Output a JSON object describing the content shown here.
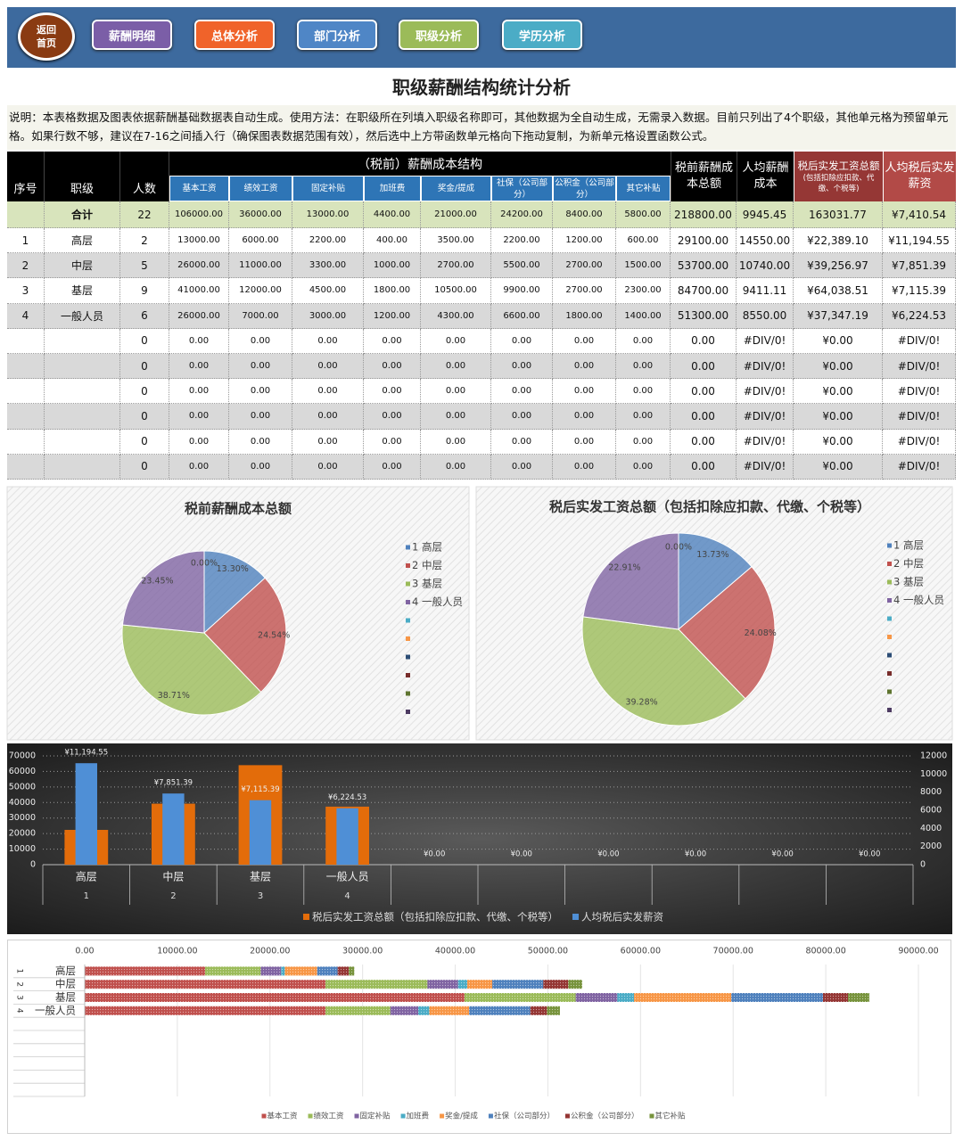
{
  "nav": {
    "home": [
      "返回",
      "首页"
    ],
    "buttons": [
      "薪酬明细",
      "总体分析",
      "部门分析",
      "职级分析",
      "学历分析"
    ]
  },
  "title": "职级薪酬结构统计分析",
  "note": "说明：本表格数据及图表依据薪酬基础数据表自动生成。使用方法：在职级所在列填入职级名称即可，其他数据为全自动生成，无需录入数据。目前只列出了4个职级，其他单元格为预留单元格。如果行数不够，建议在7-16之间插入行（确保图表数据范围有效），然后选中上方带函数单元格向下拖动复制，为新单元格设置函数公式。",
  "table": {
    "group": "（税前）薪酬成本结构",
    "columns": [
      "序号",
      "职级",
      "人数",
      "基本工资",
      "绩效工资",
      "固定补贴",
      "加班费",
      "奖金/提成",
      "社保（公司部分）",
      "公积金（公司部分）",
      "其它补贴",
      "税前薪酬成本总额",
      "人均薪酬成本",
      "税后实发工资总额",
      "人均税后实发薪资"
    ],
    "column_note": "(包括扣除应扣款、代缴、个税等)",
    "rows": [
      [
        null,
        "合计",
        "22",
        "106000.00",
        "36000.00",
        "13000.00",
        "4400.00",
        "21000.00",
        "24200.00",
        "8400.00",
        "5800.00",
        "218800.00",
        "9945.45",
        "163031.77",
        "¥7,410.54"
      ],
      [
        "1",
        "高层",
        "2",
        "13000.00",
        "6000.00",
        "2200.00",
        "400.00",
        "3500.00",
        "2200.00",
        "1200.00",
        "600.00",
        "29100.00",
        "14550.00",
        "¥22,389.10",
        "¥11,194.55"
      ],
      [
        "2",
        "中层",
        "5",
        "26000.00",
        "11000.00",
        "3300.00",
        "1000.00",
        "2700.00",
        "5500.00",
        "2700.00",
        "1500.00",
        "53700.00",
        "10740.00",
        "¥39,256.97",
        "¥7,851.39"
      ],
      [
        "3",
        "基层",
        "9",
        "41000.00",
        "12000.00",
        "4500.00",
        "1800.00",
        "10500.00",
        "9900.00",
        "2700.00",
        "2300.00",
        "84700.00",
        "9411.11",
        "¥64,038.51",
        "¥7,115.39"
      ],
      [
        "4",
        "一般人员",
        "6",
        "26000.00",
        "7000.00",
        "3000.00",
        "1200.00",
        "4300.00",
        "6600.00",
        "1800.00",
        "1400.00",
        "51300.00",
        "8550.00",
        "¥37,347.19",
        "¥6,224.53"
      ],
      [
        null,
        null,
        "0",
        "0.00",
        "0.00",
        "0.00",
        "0.00",
        "0.00",
        "0.00",
        "0.00",
        "0.00",
        "0.00",
        "#DIV/0!",
        "¥0.00",
        "#DIV/0!"
      ],
      [
        null,
        null,
        "0",
        "0.00",
        "0.00",
        "0.00",
        "0.00",
        "0.00",
        "0.00",
        "0.00",
        "0.00",
        "0.00",
        "#DIV/0!",
        "¥0.00",
        "#DIV/0!"
      ],
      [
        null,
        null,
        "0",
        "0.00",
        "0.00",
        "0.00",
        "0.00",
        "0.00",
        "0.00",
        "0.00",
        "0.00",
        "0.00",
        "#DIV/0!",
        "¥0.00",
        "#DIV/0!"
      ],
      [
        null,
        null,
        "0",
        "0.00",
        "0.00",
        "0.00",
        "0.00",
        "0.00",
        "0.00",
        "0.00",
        "0.00",
        "0.00",
        "#DIV/0!",
        "¥0.00",
        "#DIV/0!"
      ],
      [
        null,
        null,
        "0",
        "0.00",
        "0.00",
        "0.00",
        "0.00",
        "0.00",
        "0.00",
        "0.00",
        "0.00",
        "0.00",
        "#DIV/0!",
        "¥0.00",
        "#DIV/0!"
      ],
      [
        null,
        null,
        "0",
        "0.00",
        "0.00",
        "0.00",
        "0.00",
        "0.00",
        "0.00",
        "0.00",
        "0.00",
        "0.00",
        "#DIV/0!",
        "¥0.00",
        "#DIV/0!"
      ]
    ]
  },
  "chart_data": [
    {
      "type": "pie",
      "title": "税前薪酬成本总额",
      "categories": [
        "1 高层",
        "2 中层",
        "3 基层",
        "4 一般人员",
        null,
        null,
        null,
        null,
        null,
        null
      ],
      "values": [
        13.3,
        24.54,
        38.71,
        23.45,
        0,
        0,
        0,
        0,
        0,
        0
      ],
      "value_labels": [
        "13.30%",
        "24.54%",
        "38.71%",
        "23.45%",
        "0.00%",
        null,
        null,
        null,
        null,
        null
      ],
      "colors": [
        "#4f81bd",
        "#c0504d",
        "#9bbb59",
        "#8064a2",
        "#4bacc6",
        "#f79646",
        "#2c4d75",
        "#772c2a",
        "#5f7530",
        "#4d3b62"
      ]
    },
    {
      "type": "pie",
      "title": "税后实发工资总额（包括扣除应扣款、代缴、个税等）",
      "categories": [
        "1 高层",
        "2 中层",
        "3 基层",
        "4 一般人员",
        null,
        null,
        null,
        null,
        null,
        null
      ],
      "values": [
        13.73,
        24.08,
        39.28,
        22.91,
        0,
        0,
        0,
        0,
        0,
        0
      ],
      "value_labels": [
        "13.73%",
        "24.08%",
        "39.28%",
        "22.91%",
        "0.00%",
        null,
        null,
        null,
        null,
        null
      ],
      "colors": [
        "#4f81bd",
        "#c0504d",
        "#9bbb59",
        "#8064a2",
        "#4bacc6",
        "#f79646",
        "#2c4d75",
        "#772c2a",
        "#5f7530",
        "#4d3b62"
      ]
    },
    {
      "type": "bar",
      "categories": [
        "高层",
        "中层",
        "基层",
        "一般人员",
        null,
        null,
        null,
        null,
        null,
        null
      ],
      "category_numbers": [
        "1",
        "2",
        "3",
        "4",
        null,
        null,
        null,
        null,
        null,
        null
      ],
      "series": [
        {
          "name": "税后实发工资总额（包括扣除应扣款、代缴、个税等）",
          "color": "#e36c0a",
          "values": [
            22389.1,
            39256.97,
            64038.51,
            37347.19,
            0,
            0,
            0,
            0,
            0,
            0
          ]
        },
        {
          "name": "人均税后实发薪资",
          "color": "#4f8fd6",
          "axis": "y2",
          "values": [
            11194.55,
            7851.39,
            7115.39,
            6224.53,
            0,
            0,
            0,
            0,
            0,
            0
          ],
          "value_labels": [
            "¥11,194.55",
            "¥7,851.39",
            "¥7,115.39",
            "¥6,224.53",
            "¥0.00",
            "¥0.00",
            "¥0.00",
            "¥0.00",
            "¥0.00",
            "¥0.00"
          ]
        }
      ],
      "ylim": [
        0,
        70000
      ],
      "yticks": [
        0,
        10000,
        20000,
        30000,
        40000,
        50000,
        60000,
        70000
      ],
      "y2lim": [
        0,
        12000
      ],
      "y2ticks": [
        0,
        2000,
        4000,
        6000,
        8000,
        10000,
        12000
      ],
      "grid": true
    },
    {
      "type": "bar",
      "orientation": "horizontal",
      "stacked": true,
      "categories": [
        "高层",
        "中层",
        "基层",
        "一般人员",
        null,
        null,
        null,
        null,
        null,
        null
      ],
      "category_numbers": [
        "1",
        "2",
        "3",
        "4",
        null,
        null,
        null,
        null,
        null,
        null
      ],
      "series": [
        {
          "name": "基本工资",
          "color": "#c0504d",
          "values": [
            13000,
            26000,
            41000,
            26000,
            0,
            0,
            0,
            0,
            0,
            0
          ]
        },
        {
          "name": "绩效工资",
          "color": "#9bbb59",
          "values": [
            6000,
            11000,
            12000,
            7000,
            0,
            0,
            0,
            0,
            0,
            0
          ]
        },
        {
          "name": "固定补贴",
          "color": "#8064a2",
          "values": [
            2200,
            3300,
            4500,
            3000,
            0,
            0,
            0,
            0,
            0,
            0
          ]
        },
        {
          "name": "加班费",
          "color": "#4bacc6",
          "values": [
            400,
            1000,
            1800,
            1200,
            0,
            0,
            0,
            0,
            0,
            0
          ]
        },
        {
          "name": "奖金/提成",
          "color": "#f79646",
          "values": [
            3500,
            2700,
            10500,
            4300,
            0,
            0,
            0,
            0,
            0,
            0
          ]
        },
        {
          "name": "社保（公司部分）",
          "color": "#4f81bd",
          "values": [
            2200,
            5500,
            9900,
            6600,
            0,
            0,
            0,
            0,
            0,
            0
          ]
        },
        {
          "name": "公积金（公司部分）",
          "color": "#943634",
          "values": [
            1200,
            2700,
            2700,
            1800,
            0,
            0,
            0,
            0,
            0,
            0
          ]
        },
        {
          "name": "其它补贴",
          "color": "#77933c",
          "values": [
            600,
            1500,
            2300,
            1400,
            0,
            0,
            0,
            0,
            0,
            0
          ]
        }
      ],
      "xlim": [
        0,
        90000
      ],
      "xticks": [
        {
          "value": 0,
          "label": "0.00"
        },
        {
          "value": 10000,
          "label": "10000.00"
        },
        {
          "value": 20000,
          "label": "20000.00"
        },
        {
          "value": 30000,
          "label": "30000.00"
        },
        {
          "value": 40000,
          "label": "40000.00"
        },
        {
          "value": 50000,
          "label": "50000.00"
        },
        {
          "value": 60000,
          "label": "60000.00"
        },
        {
          "value": 70000,
          "label": "70000.00"
        },
        {
          "value": 80000,
          "label": "80000.00"
        },
        {
          "value": 90000,
          "label": "90000.00"
        }
      ],
      "grid": true
    }
  ]
}
